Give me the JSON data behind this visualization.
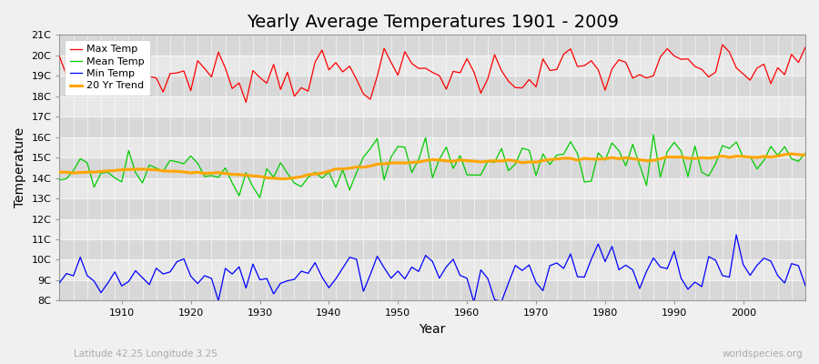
{
  "title": "Yearly Average Temperatures 1901 - 2009",
  "xlabel": "Year",
  "ylabel": "Temperature",
  "lat_lon_label": "Latitude 42.25 Longitude 3.25",
  "watermark": "worldspecies.org",
  "ylim_min": 8,
  "ylim_max": 21,
  "yticks": [
    8,
    9,
    10,
    11,
    12,
    13,
    14,
    15,
    16,
    17,
    18,
    19,
    20,
    21
  ],
  "ytick_labels": [
    "8C",
    "9C",
    "10C",
    "11C",
    "12C",
    "13C",
    "14C",
    "15C",
    "16C",
    "17C",
    "18C",
    "19C",
    "20C",
    "21C"
  ],
  "xticks": [
    1910,
    1920,
    1930,
    1940,
    1950,
    1960,
    1970,
    1980,
    1990,
    2000
  ],
  "line_colors": {
    "max": "#ff0000",
    "mean": "#00cc00",
    "min": "#0000ff",
    "trend": "#ffa500"
  },
  "legend_labels": [
    "Max Temp",
    "Mean Temp",
    "Min Temp",
    "20 Yr Trend"
  ],
  "bg_color": "#f0f0f0",
  "band_light": "#e8e8e8",
  "band_dark": "#d8d8d8",
  "grid_color": "#ffffff",
  "title_fontsize": 14,
  "xlim_min": 1901,
  "xlim_max": 2009
}
